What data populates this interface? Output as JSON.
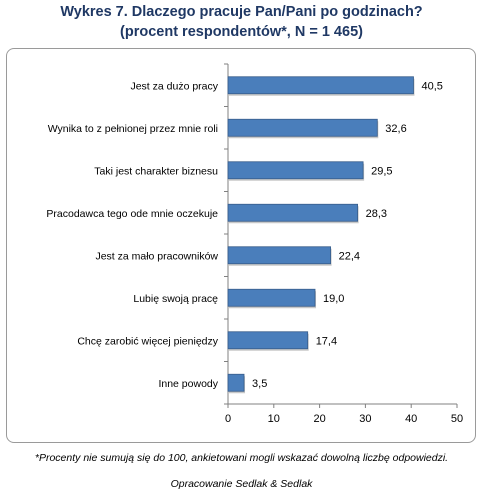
{
  "header": {
    "title_line1": "Wykres 7. Dlaczego pracuje Pan/Pani po godzinach?",
    "title_line2": "(procent respondentów*, N = 1 465)"
  },
  "footer": {
    "note": "*Procenty nie sumują się do 100, ankietowani mogli wskazać dowolną liczbę odpowiedzi.",
    "source": "Opracowanie Sedlak & Sedlak"
  },
  "colors": {
    "bar": "#4a7ebb",
    "bar_edge": "#385d8a",
    "axis": "#808080",
    "text": "#000000"
  },
  "chart_data": {
    "type": "bar",
    "orientation": "horizontal",
    "categories": [
      "Jest za dużo pracy",
      "Wynika to z pełnionej przez mnie roli",
      "Taki jest charakter biznesu",
      "Pracodawca tego ode mnie oczekuje",
      "Jest za mało  pracowników",
      "Lubię swoją pracę",
      "Chcę zarobić więcej pieniędzy",
      "Inne powody"
    ],
    "values": [
      40.5,
      32.6,
      29.5,
      28.3,
      22.4,
      19.0,
      17.4,
      3.5
    ],
    "value_labels": [
      "40,5",
      "32,6",
      "29,5",
      "28,3",
      "22,4",
      "19,0",
      "17,4",
      "3,5"
    ],
    "xlim": [
      0,
      50
    ],
    "xticks": [
      0,
      10,
      20,
      30,
      40,
      50
    ],
    "grid": false,
    "legend": "none"
  }
}
